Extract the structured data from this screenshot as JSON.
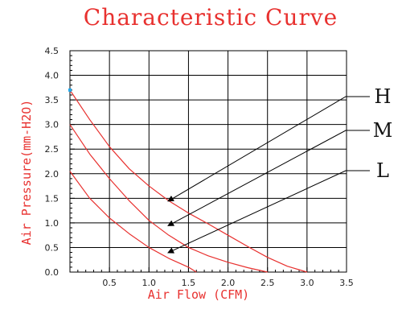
{
  "chart_data": {
    "type": "line",
    "title": "Characteristic Curve",
    "xlabel": "Air Flow (CFM)",
    "ylabel": "Air Pressure(mm-H2O)",
    "xlim": [
      0,
      3.5
    ],
    "ylim": [
      0,
      4.5
    ],
    "x_ticks": [
      "0.5",
      "1.0",
      "1.5",
      "2.0",
      "2.5",
      "3.0",
      "3.5"
    ],
    "y_ticks": [
      "0.0",
      "0.5",
      "1.0",
      "1.5",
      "2.0",
      "2.5",
      "3.0",
      "3.5",
      "4.0",
      "4.5"
    ],
    "grid": true,
    "series": [
      {
        "name": "H",
        "x": [
          0.0,
          0.25,
          0.5,
          0.75,
          1.0,
          1.25,
          1.5,
          1.75,
          2.0,
          2.25,
          2.5,
          2.75,
          3.0
        ],
        "y": [
          3.7,
          3.1,
          2.55,
          2.1,
          1.75,
          1.45,
          1.2,
          0.98,
          0.75,
          0.52,
          0.3,
          0.12,
          0.0
        ]
      },
      {
        "name": "M",
        "x": [
          0.0,
          0.25,
          0.5,
          0.75,
          1.0,
          1.25,
          1.5,
          1.75,
          2.0,
          2.25,
          2.5
        ],
        "y": [
          3.0,
          2.4,
          1.9,
          1.45,
          1.05,
          0.75,
          0.5,
          0.33,
          0.2,
          0.09,
          0.0
        ]
      },
      {
        "name": "L",
        "x": [
          0.0,
          0.25,
          0.5,
          0.75,
          1.0,
          1.25,
          1.5,
          1.6
        ],
        "y": [
          2.05,
          1.5,
          1.1,
          0.78,
          0.5,
          0.28,
          0.1,
          0.0
        ]
      }
    ],
    "annotations": [
      "H",
      "M",
      "L"
    ],
    "colors": {
      "title": "#e8312f",
      "axis_labels": "#e8312f",
      "curves": "#e8312f",
      "grid": "#000000",
      "arrows": "#000000",
      "start_marker": "#22aaee"
    }
  }
}
